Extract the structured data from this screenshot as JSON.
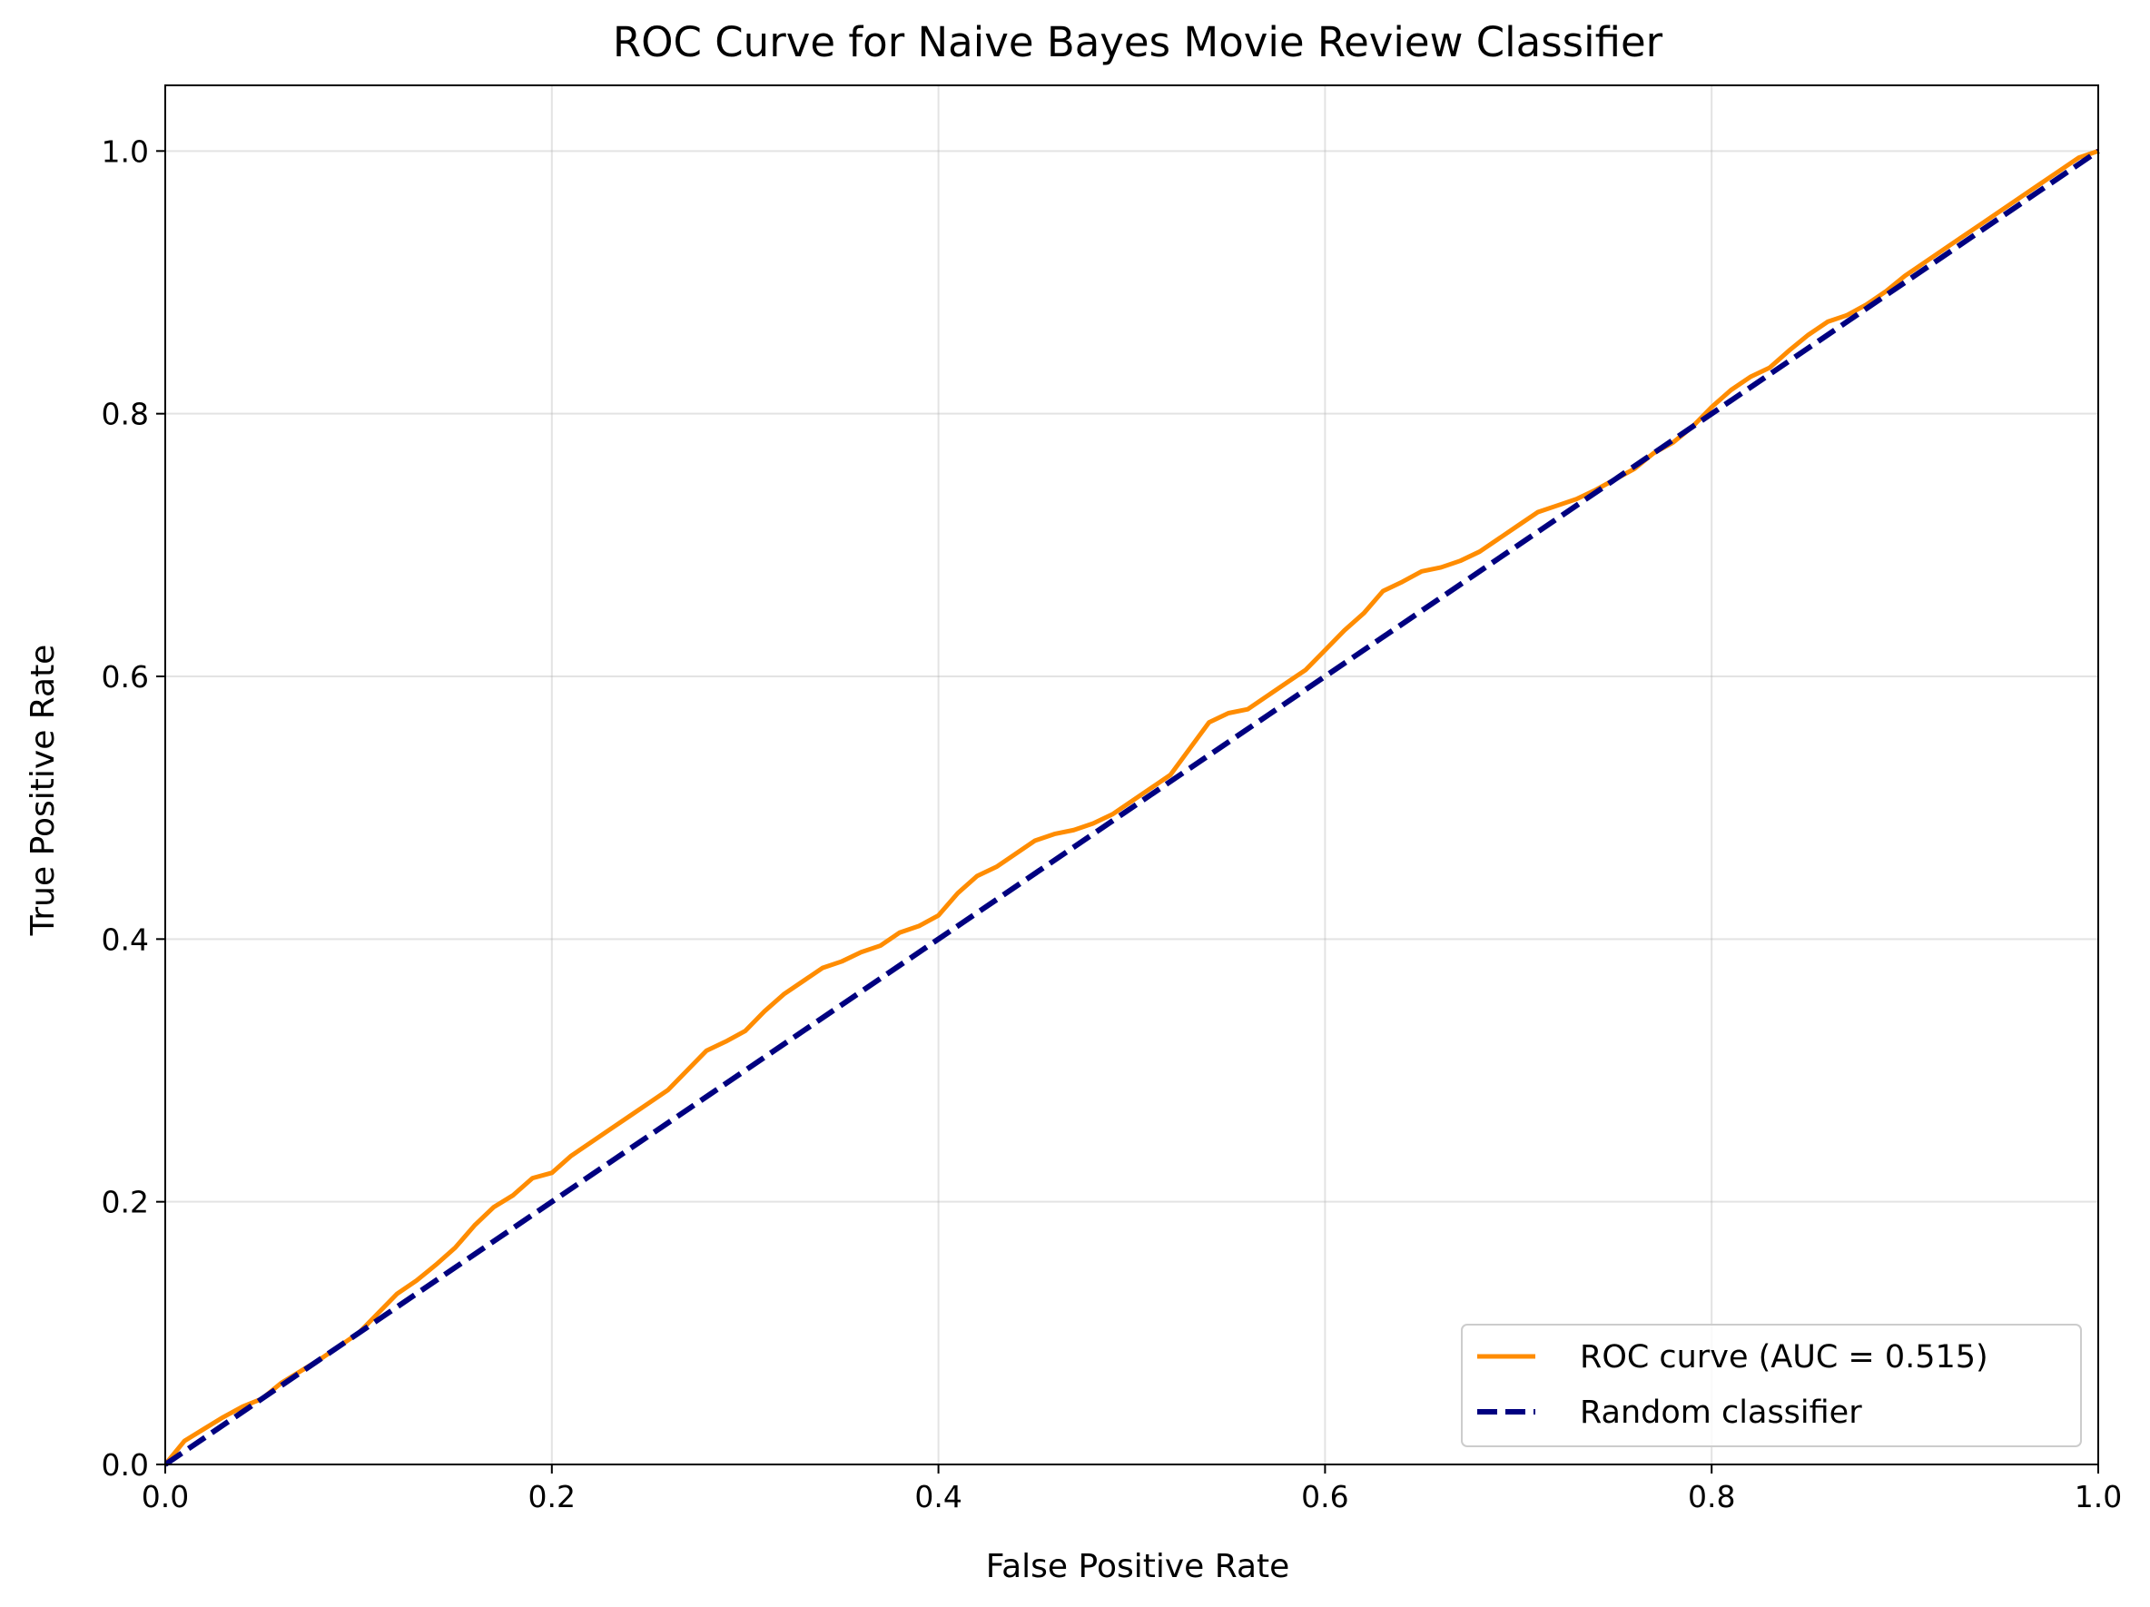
{
  "chart_data": {
    "type": "line",
    "title": "ROC Curve for Naive Bayes Movie Review Classifier",
    "xlabel": "False Positive Rate",
    "ylabel": "True Positive Rate",
    "xlim": [
      0.0,
      1.0
    ],
    "ylim": [
      0.0,
      1.05
    ],
    "xticks": [
      0.0,
      0.2,
      0.4,
      0.6,
      0.8,
      1.0
    ],
    "xtick_labels": [
      "0.0",
      "0.2",
      "0.4",
      "0.6",
      "0.8",
      "1.0"
    ],
    "yticks": [
      0.0,
      0.2,
      0.4,
      0.6,
      0.8,
      1.0
    ],
    "ytick_labels": [
      "0.0",
      "0.2",
      "0.4",
      "0.6",
      "0.8",
      "1.0"
    ],
    "grid": true,
    "legend_position": "lower-right",
    "series": [
      {
        "name": "ROC curve (AUC = 0.515)",
        "color": "#ff8c00",
        "style": "solid",
        "x": [
          0.0,
          0.01,
          0.02,
          0.03,
          0.04,
          0.05,
          0.06,
          0.07,
          0.08,
          0.09,
          0.1,
          0.11,
          0.12,
          0.13,
          0.14,
          0.15,
          0.16,
          0.17,
          0.18,
          0.19,
          0.2,
          0.21,
          0.22,
          0.23,
          0.24,
          0.25,
          0.26,
          0.27,
          0.28,
          0.29,
          0.3,
          0.31,
          0.32,
          0.33,
          0.34,
          0.35,
          0.36,
          0.37,
          0.38,
          0.39,
          0.4,
          0.41,
          0.42,
          0.43,
          0.44,
          0.45,
          0.46,
          0.47,
          0.48,
          0.49,
          0.5,
          0.51,
          0.52,
          0.53,
          0.54,
          0.55,
          0.56,
          0.57,
          0.58,
          0.59,
          0.6,
          0.61,
          0.62,
          0.63,
          0.64,
          0.65,
          0.66,
          0.67,
          0.68,
          0.69,
          0.7,
          0.71,
          0.72,
          0.73,
          0.74,
          0.75,
          0.76,
          0.77,
          0.78,
          0.79,
          0.8,
          0.81,
          0.82,
          0.83,
          0.84,
          0.85,
          0.86,
          0.87,
          0.88,
          0.89,
          0.9,
          0.91,
          0.92,
          0.93,
          0.94,
          0.95,
          0.96,
          0.97,
          0.98,
          0.99,
          1.0
        ],
        "y": [
          0.0,
          0.018,
          0.027,
          0.036,
          0.044,
          0.05,
          0.062,
          0.071,
          0.08,
          0.09,
          0.1,
          0.115,
          0.13,
          0.14,
          0.152,
          0.165,
          0.182,
          0.196,
          0.205,
          0.218,
          0.222,
          0.235,
          0.245,
          0.255,
          0.265,
          0.275,
          0.285,
          0.3,
          0.315,
          0.322,
          0.33,
          0.345,
          0.358,
          0.368,
          0.378,
          0.383,
          0.39,
          0.395,
          0.405,
          0.41,
          0.418,
          0.435,
          0.448,
          0.455,
          0.465,
          0.475,
          0.48,
          0.483,
          0.488,
          0.495,
          0.505,
          0.515,
          0.525,
          0.545,
          0.565,
          0.572,
          0.575,
          0.585,
          0.595,
          0.605,
          0.62,
          0.635,
          0.648,
          0.665,
          0.672,
          0.68,
          0.683,
          0.688,
          0.695,
          0.705,
          0.715,
          0.725,
          0.73,
          0.735,
          0.742,
          0.75,
          0.758,
          0.77,
          0.778,
          0.79,
          0.805,
          0.818,
          0.828,
          0.835,
          0.848,
          0.86,
          0.87,
          0.875,
          0.883,
          0.893,
          0.905,
          0.915,
          0.925,
          0.935,
          0.945,
          0.955,
          0.965,
          0.975,
          0.985,
          0.995,
          1.0
        ]
      },
      {
        "name": "Random classifier",
        "color": "#000080",
        "style": "dashed",
        "x": [
          0.0,
          1.0
        ],
        "y": [
          0.0,
          1.0
        ]
      }
    ]
  }
}
